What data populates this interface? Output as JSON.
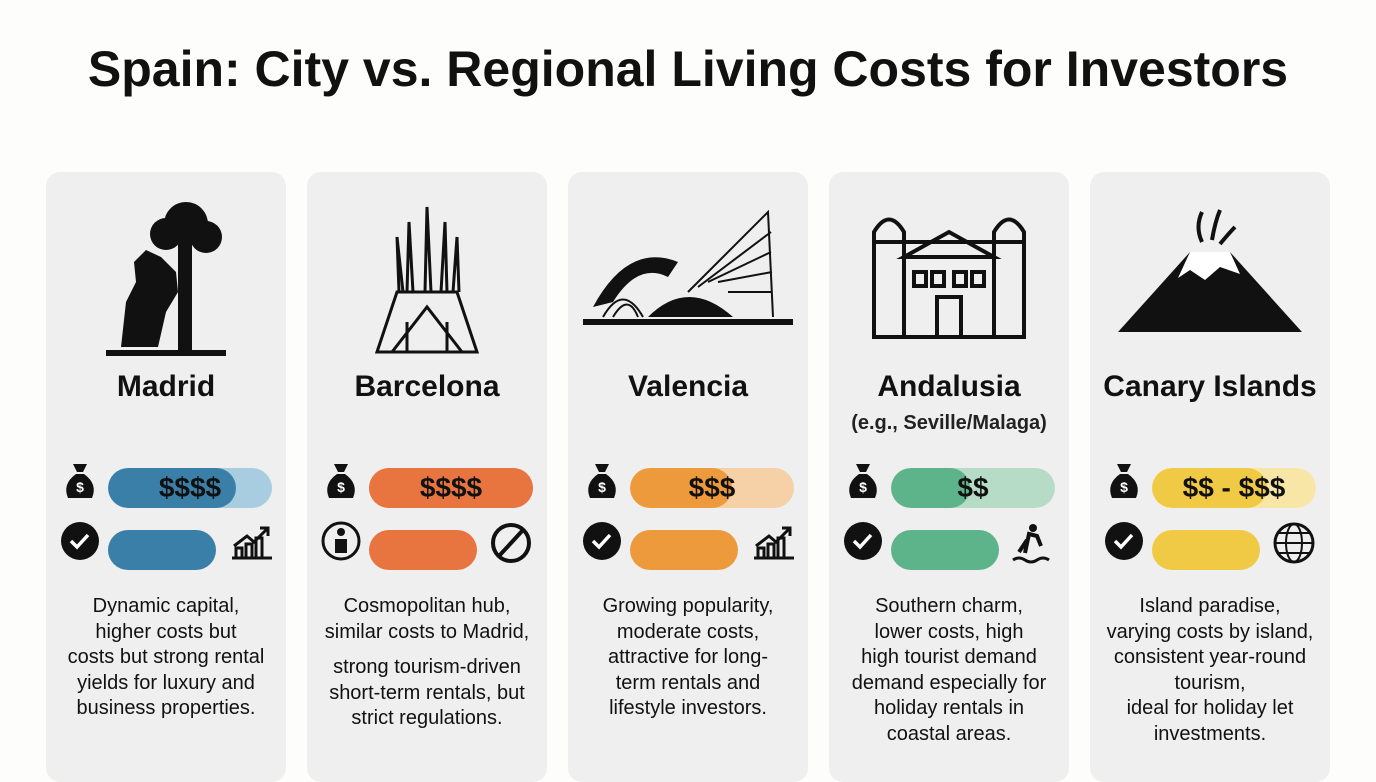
{
  "title": "Spain: City vs. Regional Living Costs for Investors",
  "cards": [
    {
      "name": "Madrid",
      "cost": "$$$$",
      "color": "#3a7fa8",
      "light": "#a8cde0",
      "description": [
        [
          "Dynamic capital,",
          "higher costs but",
          "costs but strong rental",
          "yields for luxury and",
          "business properties."
        ]
      ]
    },
    {
      "name": "Barcelona",
      "cost": "$$$$",
      "color": "#e8743f",
      "light": "#e8743f",
      "description": [
        [
          "Cosmopolitan hub,",
          "similar costs to Madrid,"
        ],
        [
          "strong tourism-driven",
          "short-term rentals, but",
          "strict regulations."
        ]
      ]
    },
    {
      "name": "Valencia",
      "cost": "$$$",
      "color": "#ec9a3c",
      "light": "#f6d0a6",
      "description": [
        [
          "Growing popularity,",
          "moderate costs,",
          "attractive for long-",
          "term rentals and",
          "lifestyle investors."
        ]
      ]
    },
    {
      "name": "Andalusia",
      "subtitle": "(e.g., Seville/Malaga)",
      "cost": "$$",
      "color": "#5db48a",
      "light": "#b6dcc7",
      "description": [
        [
          "Southern charm,",
          "lower costs, high",
          "high tourist demand",
          "demand especially for",
          "holiday rentals in",
          "coastal areas."
        ]
      ]
    },
    {
      "name": "Canary Islands",
      "cost": "$$ - $$$",
      "color": "#f1ca45",
      "light": "#f8e6a6",
      "description": [
        [
          "Island paradise,",
          "varying costs by island,",
          "consistent year-round",
          "tourism,",
          "ideal for holiday let",
          "investments."
        ]
      ]
    }
  ]
}
